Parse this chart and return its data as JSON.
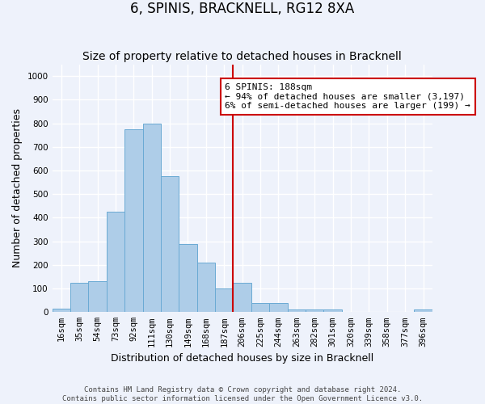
{
  "title": "6, SPINIS, BRACKNELL, RG12 8XA",
  "subtitle": "Size of property relative to detached houses in Bracknell",
  "xlabel": "Distribution of detached houses by size in Bracknell",
  "ylabel": "Number of detached properties",
  "bar_labels": [
    "16sqm",
    "35sqm",
    "54sqm",
    "73sqm",
    "92sqm",
    "111sqm",
    "130sqm",
    "149sqm",
    "168sqm",
    "187sqm",
    "206sqm",
    "225sqm",
    "244sqm",
    "263sqm",
    "282sqm",
    "301sqm",
    "320sqm",
    "339sqm",
    "358sqm",
    "377sqm",
    "396sqm"
  ],
  "bar_values": [
    15,
    125,
    130,
    425,
    775,
    800,
    575,
    290,
    210,
    100,
    125,
    40,
    40,
    10,
    10,
    10,
    0,
    0,
    0,
    0,
    10
  ],
  "bar_color": "#aecde8",
  "bar_edge_color": "#6aaad4",
  "vline_bin_index": 9,
  "vline_color": "#cc0000",
  "annotation_text": "6 SPINIS: 188sqm\n← 94% of detached houses are smaller (3,197)\n6% of semi-detached houses are larger (199) →",
  "annotation_box_color": "#ffffff",
  "annotation_box_edge_color": "#cc0000",
  "ylim": [
    0,
    1050
  ],
  "yticks": [
    0,
    100,
    200,
    300,
    400,
    500,
    600,
    700,
    800,
    900,
    1000
  ],
  "footer_text": "Contains HM Land Registry data © Crown copyright and database right 2024.\nContains public sector information licensed under the Open Government Licence v3.0.",
  "bg_color": "#eef2fb",
  "grid_color": "#ffffff",
  "title_fontsize": 12,
  "subtitle_fontsize": 10,
  "tick_fontsize": 7.5,
  "ylabel_fontsize": 9,
  "xlabel_fontsize": 9,
  "footer_fontsize": 6.5
}
